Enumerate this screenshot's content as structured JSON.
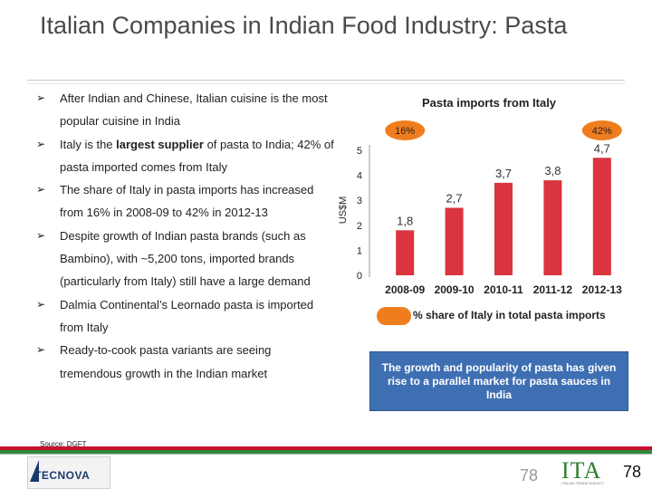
{
  "slide": {
    "title": "Italian Companies in Indian Food Industry: Pasta"
  },
  "bullets": [
    "After Indian and Chinese, Italian cuisine is the most popular cuisine in India",
    {
      "before": "Italy is the ",
      "bold": "largest supplier",
      "after": " of pasta to India; 42% of pasta imported comes from Italy"
    },
    "The share of Italy in pasta imports has increased from 16% in 2008-09 to 42% in 2012-13",
    "Despite growth of Indian pasta brands (such as Bambino), with ~5,200 tons, imported brands (particularly from Italy) still have a large demand",
    "Dalmia Continental’s Leornado pasta is imported from Italy",
    "Ready-to-cook pasta variants are seeing tremendous growth in the Indian market"
  ],
  "source": "Source: DGFT",
  "chart_data": {
    "type": "bar",
    "title": "Pasta imports from Italy",
    "ylabel": "US$M",
    "categories": [
      "2008-09",
      "2009-10",
      "2010-11",
      "2011-12",
      "2012-13"
    ],
    "values": [
      1.8,
      2.7,
      3.7,
      3.8,
      4.7
    ],
    "value_labels": [
      "1,8",
      "2,7",
      "3,7",
      "3,8",
      "4,7"
    ],
    "yticks": [
      "0",
      "1",
      "2",
      "3",
      "4",
      "5"
    ],
    "ylim": [
      0,
      5
    ],
    "bar_color": "#d9343f",
    "share_labels": [
      {
        "category": "2008-09",
        "text": "16%"
      },
      {
        "category": "2012-13",
        "text": "42%"
      }
    ],
    "share_color": "#f07d1d",
    "legend": "% share of Italy in total pasta imports"
  },
  "callout": "The growth and popularity of pasta has given rise to a parallel market for pasta sauces in India",
  "footer": {
    "company_logo": "TECNOVA",
    "partner_logo": "ITA",
    "partner_sub": "ITALIAN TRADE AGENCY",
    "page_ghost": "78",
    "page_number": "78"
  }
}
